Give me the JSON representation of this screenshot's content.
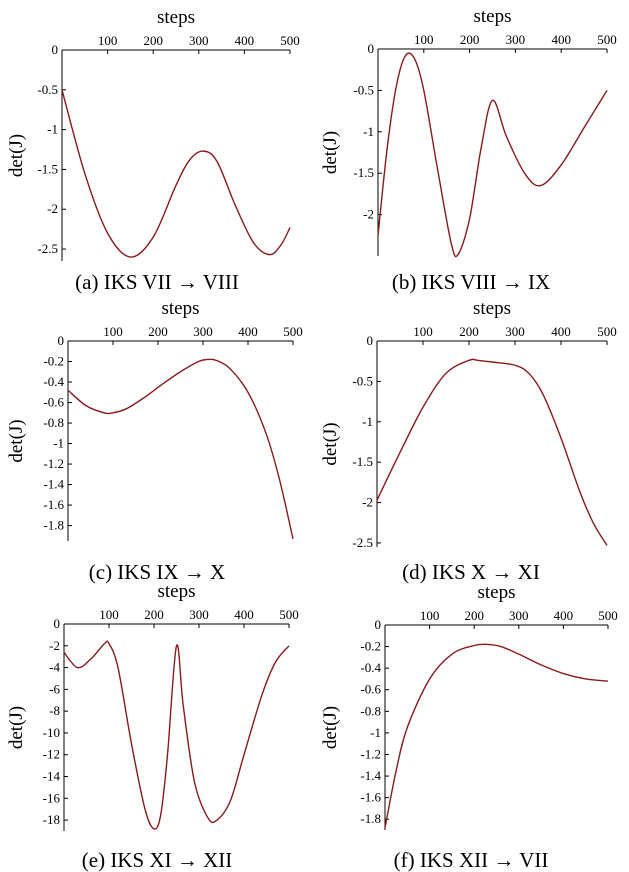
{
  "chart_data": [
    {
      "type": "line",
      "caption": "(a) IKS VII → VIII",
      "xlabel": "steps",
      "ylabel": "det(J)",
      "xlim": [
        0,
        500
      ],
      "ylim": [
        -2.65,
        0
      ],
      "xticks": [
        100,
        200,
        300,
        400,
        500
      ],
      "yticks": [
        0,
        -0.5,
        -1,
        -1.5,
        -2,
        -2.5
      ],
      "ytick_labels": [
        "0",
        "-0.5",
        "-1",
        "-1.5",
        "-2",
        "-2.5"
      ],
      "series": [
        {
          "color": "#8b1a1a",
          "x": [
            0,
            50,
            100,
            150,
            200,
            250,
            280,
            310,
            340,
            380,
            420,
            455,
            480,
            500
          ],
          "y": [
            -0.5,
            -1.55,
            -2.3,
            -2.6,
            -2.35,
            -1.7,
            -1.38,
            -1.27,
            -1.4,
            -1.95,
            -2.42,
            -2.57,
            -2.45,
            -2.23
          ]
        }
      ]
    },
    {
      "type": "line",
      "caption": "(b) IKS VIII → IX",
      "xlabel": "steps",
      "ylabel": "det(J)",
      "xlim": [
        0,
        500
      ],
      "ylim": [
        -2.5,
        0
      ],
      "xticks": [
        100,
        200,
        300,
        400,
        500
      ],
      "yticks": [
        0,
        -0.5,
        -1,
        -1.5,
        -2
      ],
      "ytick_labels": [
        "0",
        "-0.5",
        "-1",
        "-1.5",
        "-2"
      ],
      "series": [
        {
          "color": "#8b1a1a",
          "x": [
            0,
            20,
            40,
            60,
            80,
            100,
            130,
            160,
            175,
            200,
            225,
            250,
            280,
            320,
            355,
            400,
            450,
            500
          ],
          "y": [
            -2.25,
            -1.2,
            -0.45,
            -0.08,
            -0.12,
            -0.5,
            -1.45,
            -2.35,
            -2.48,
            -2.05,
            -1.2,
            -0.62,
            -1.05,
            -1.5,
            -1.65,
            -1.4,
            -0.95,
            -0.5
          ]
        }
      ]
    },
    {
      "type": "line",
      "caption": "(c) IKS IX → X",
      "xlabel": "steps",
      "ylabel": "det(J)",
      "xlim": [
        0,
        500
      ],
      "ylim": [
        -1.95,
        0
      ],
      "xticks": [
        100,
        200,
        300,
        400,
        500
      ],
      "yticks": [
        0,
        -0.2,
        -0.4,
        -0.6,
        -0.8,
        -1,
        -1.2,
        -1.4,
        -1.6,
        -1.8
      ],
      "ytick_labels": [
        "0",
        "-0.2",
        "-0.4",
        "-0.6",
        "-0.8",
        "-1",
        "-1.2",
        "-1.4",
        "-1.6",
        "-1.8"
      ],
      "series": [
        {
          "color": "#8b1a1a",
          "x": [
            0,
            40,
            80,
            100,
            130,
            170,
            210,
            250,
            290,
            310,
            330,
            360,
            400,
            440,
            470,
            500
          ],
          "y": [
            -0.48,
            -0.63,
            -0.7,
            -0.7,
            -0.66,
            -0.55,
            -0.42,
            -0.3,
            -0.2,
            -0.18,
            -0.19,
            -0.27,
            -0.5,
            -0.9,
            -1.35,
            -1.93
          ]
        }
      ]
    },
    {
      "type": "line",
      "caption": "(d) IKS X → XI",
      "xlabel": "steps",
      "ylabel": "det(J)",
      "xlim": [
        0,
        500
      ],
      "ylim": [
        -2.55,
        0
      ],
      "xticks": [
        100,
        200,
        300,
        400,
        500
      ],
      "yticks": [
        0,
        -0.5,
        -1,
        -1.5,
        -2,
        -2.5
      ],
      "ytick_labels": [
        "0",
        "-0.5",
        "-1",
        "-1.5",
        "-2",
        "-2.5"
      ],
      "series": [
        {
          "color": "#8b1a1a",
          "x": [
            0,
            50,
            100,
            150,
            200,
            220,
            250,
            300,
            330,
            360,
            400,
            440,
            470,
            500
          ],
          "y": [
            -1.97,
            -1.38,
            -0.82,
            -0.4,
            -0.24,
            -0.24,
            -0.26,
            -0.3,
            -0.4,
            -0.65,
            -1.2,
            -1.85,
            -2.25,
            -2.53
          ]
        }
      ]
    },
    {
      "type": "line",
      "caption": "(e) IKS XI → XII",
      "xlabel": "steps",
      "ylabel": "det(J)",
      "xlim": [
        0,
        500
      ],
      "ylim": [
        -19,
        0
      ],
      "xticks": [
        100,
        200,
        300,
        400,
        500
      ],
      "yticks": [
        0,
        -2,
        -4,
        -6,
        -8,
        -10,
        -12,
        -14,
        -16,
        -18
      ],
      "ytick_labels": [
        "0",
        "-2",
        "-4",
        "-6",
        "-8",
        "-10",
        "-12",
        "-14",
        "-16",
        "-18"
      ],
      "series": [
        {
          "color": "#8b1a1a",
          "x": [
            0,
            30,
            60,
            90,
            100,
            120,
            150,
            180,
            200,
            215,
            230,
            250,
            265,
            290,
            320,
            340,
            370,
            400,
            440,
            470,
            500
          ],
          "y": [
            -2.6,
            -4.0,
            -3.2,
            -1.8,
            -1.8,
            -4.0,
            -11.0,
            -17.0,
            -18.8,
            -17.5,
            -12.0,
            -2.0,
            -7.5,
            -14.5,
            -17.8,
            -18.0,
            -16.2,
            -12.0,
            -6.5,
            -3.5,
            -2.0
          ]
        }
      ]
    },
    {
      "type": "line",
      "caption": "(f) IKS XII → VII",
      "xlabel": "steps",
      "ylabel": "det(J)",
      "xlim": [
        0,
        500
      ],
      "ylim": [
        -1.9,
        0
      ],
      "xticks": [
        100,
        200,
        300,
        400,
        500
      ],
      "yticks": [
        0,
        -0.2,
        -0.4,
        -0.6,
        -0.8,
        -1,
        -1.2,
        -1.4,
        -1.6,
        -1.8
      ],
      "ytick_labels": [
        "0",
        "-0.2",
        "-0.4",
        "-0.6",
        "-0.8",
        "-1",
        "-1.2",
        "-1.4",
        "-1.6",
        "-1.8"
      ],
      "series": [
        {
          "color": "#8b1a1a",
          "x": [
            0,
            25,
            50,
            100,
            150,
            200,
            230,
            260,
            300,
            350,
            400,
            450,
            500
          ],
          "y": [
            -1.88,
            -1.35,
            -0.95,
            -0.5,
            -0.27,
            -0.19,
            -0.18,
            -0.2,
            -0.27,
            -0.37,
            -0.45,
            -0.5,
            -0.52
          ]
        }
      ]
    }
  ]
}
